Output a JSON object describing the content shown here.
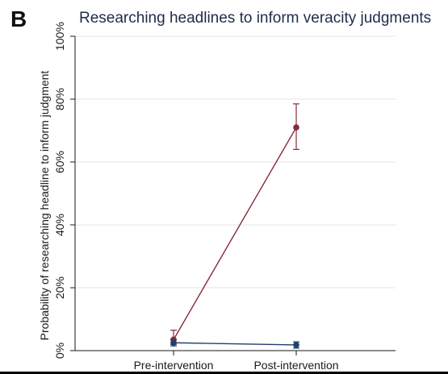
{
  "panel_label": "B",
  "chart_data": {
    "type": "line",
    "title": "Researching headlines to inform veracity judgments",
    "xlabel": "",
    "ylabel": "Probability of researching headline to inform judgment",
    "categories": [
      "Pre-intervention",
      "Post-intervention"
    ],
    "ylim": [
      0,
      100
    ],
    "yticks": [
      0,
      20,
      40,
      60,
      80,
      100
    ],
    "ytick_labels": [
      "0%",
      "20%",
      "40%",
      "60%",
      "80%",
      "100%"
    ],
    "grid": true,
    "legend": "none",
    "series": [
      {
        "color": "#8b2a3a",
        "values": [
          3.5,
          71
        ],
        "error_low": [
          2,
          64
        ],
        "error_high": [
          6.5,
          78.5
        ]
      },
      {
        "color": "#1f3f6e",
        "values": [
          2.5,
          1.8
        ],
        "error_low": [
          1.5,
          0.8
        ],
        "error_high": [
          3.5,
          2.8
        ]
      }
    ]
  }
}
